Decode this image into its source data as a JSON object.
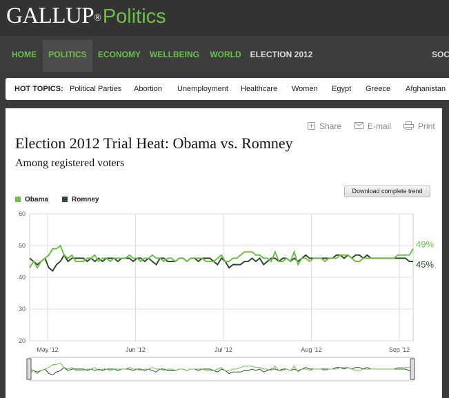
{
  "header": {
    "brand": "GALLUP",
    "reg_mark": "®",
    "section": "Politics"
  },
  "nav": {
    "items": [
      "HOME",
      "POLITICS",
      "ECONOMY",
      "WELLBEING",
      "WORLD",
      "ELECTION 2012",
      "SOC"
    ]
  },
  "hot_topics": {
    "label": "HOT TOPICS:",
    "items": [
      "Political Parties",
      "Abortion",
      "Unemployment",
      "Healthcare",
      "Women",
      "Egypt",
      "Greece",
      "Afghanistan"
    ]
  },
  "actions": {
    "share": "Share",
    "email": "E-mail",
    "print": "Print"
  },
  "article": {
    "title": "Election 2012 Trial Heat: Obama vs. Romney",
    "subtitle": "Among registered voters"
  },
  "download_label": "Download complete trend",
  "colors": {
    "obama": "#6cc04a",
    "romney": "#2d4a2d",
    "accent": "#6cc04a"
  },
  "chart_data": {
    "type": "line",
    "ylim": [
      20,
      60
    ],
    "yticks": [
      20,
      30,
      40,
      50,
      60
    ],
    "xticks": [
      "May '12",
      "Jun '12",
      "Jul '12",
      "Aug '12",
      "Sep '12"
    ],
    "grid": true,
    "legend": "top-left",
    "end_labels": {
      "obama": "49%",
      "romney": "45%"
    },
    "series": [
      {
        "name": "Obama",
        "values": [
          43,
          45,
          43,
          45,
          46,
          47,
          49,
          49,
          50,
          47,
          46,
          47,
          45,
          45,
          45,
          46,
          46,
          47,
          45,
          46,
          46,
          45,
          46,
          46,
          46,
          46,
          47,
          46,
          46,
          45,
          46,
          46,
          47,
          46,
          46,
          45,
          46,
          46,
          45,
          46,
          46,
          45,
          46,
          46,
          46,
          46,
          45,
          45,
          45,
          46,
          47,
          45,
          45,
          46,
          46,
          47,
          48,
          48,
          48,
          47,
          47,
          46,
          46,
          45,
          48,
          45,
          45,
          46,
          45,
          48,
          44,
          46,
          46,
          45,
          46,
          46,
          46,
          45,
          46,
          46,
          46,
          47,
          47,
          47,
          46,
          45,
          45,
          46,
          46,
          46,
          46,
          46,
          46,
          46,
          46,
          46,
          47,
          47,
          47,
          47,
          49
        ]
      },
      {
        "name": "Romney",
        "values": [
          46,
          45,
          44,
          45,
          46,
          43,
          42,
          44,
          45,
          47,
          45,
          46,
          46,
          46,
          46,
          45,
          46,
          45,
          46,
          45,
          46,
          46,
          46,
          45,
          46,
          46,
          46,
          45,
          46,
          46,
          45,
          46,
          45,
          44,
          46,
          46,
          45,
          45,
          45,
          46,
          46,
          45,
          46,
          46,
          45,
          46,
          46,
          46,
          45,
          44,
          46,
          45,
          43,
          44,
          44,
          44,
          45,
          45,
          46,
          45,
          46,
          44,
          45,
          46,
          46,
          45,
          46,
          46,
          45,
          46,
          45,
          46,
          47,
          46,
          46,
          46,
          46,
          46,
          46,
          46,
          47,
          47,
          46,
          47,
          46,
          47,
          47,
          46,
          47,
          46,
          46,
          46,
          46,
          46,
          46,
          46,
          46,
          46,
          46,
          45,
          45
        ]
      }
    ]
  }
}
